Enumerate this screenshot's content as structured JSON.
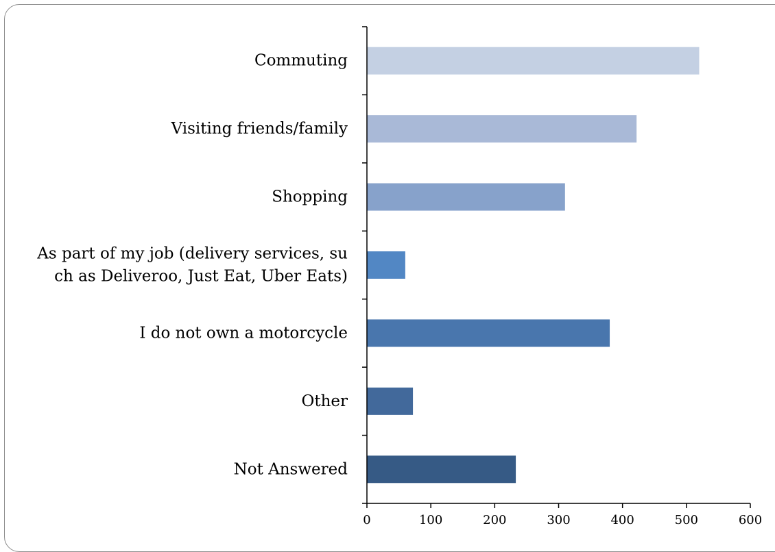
{
  "chart_data": {
    "type": "bar",
    "orientation": "horizontal",
    "categories": [
      "Commuting",
      "Visiting friends/family",
      "Shopping",
      "As part of my job (delivery services, such as Deliveroo, Just Eat, Uber Eats)",
      "I do not own a motorcycle",
      "Other",
      "Not Answered"
    ],
    "category_label_lines": [
      [
        "Commuting"
      ],
      [
        "Visiting friends/family"
      ],
      [
        "Shopping"
      ],
      [
        "As part of my job (delivery services, su",
        "ch as Deliveroo, Just Eat, Uber Eats)"
      ],
      [
        "I do not own a motorcycle"
      ],
      [
        "Other"
      ],
      [
        "Not Answered"
      ]
    ],
    "values": [
      520,
      422,
      310,
      60,
      380,
      72,
      233
    ],
    "colors": [
      "#c4d0e3",
      "#a9b9d7",
      "#87a2cb",
      "#5287c4",
      "#4976ad",
      "#42699b",
      "#365a85"
    ],
    "xlim": [
      0,
      600
    ],
    "xticks": [
      0,
      100,
      200,
      300,
      400,
      500,
      600
    ],
    "title": "",
    "xlabel": "",
    "ylabel": "",
    "grid": false,
    "legend": "none"
  }
}
